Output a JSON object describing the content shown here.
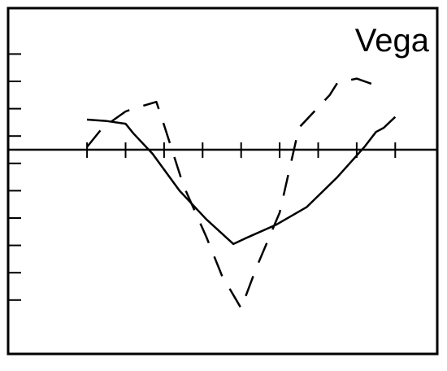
{
  "chart_data": {
    "type": "line",
    "title": "Vega",
    "xlabel": "",
    "ylabel": "",
    "grid": false,
    "legend": "none",
    "xlim": [
      0,
      11
    ],
    "ylim": [
      -7.5,
      4.5
    ],
    "x_ticks": [
      1.5,
      2.5,
      3.5,
      4.5,
      5.5,
      6.5,
      7.5,
      8.5,
      9.5
    ],
    "y_ticks": [
      -5.5,
      -4.5,
      -3.5,
      -2.5,
      -1.5,
      -0.5,
      0.5,
      1.5,
      2.5,
      3.5
    ],
    "series": [
      {
        "style": "solid",
        "color": "#000000",
        "x": [
          1.5,
          2.0,
          2.5,
          2.7,
          3.2,
          3.9,
          4.6,
          5.3,
          5.6,
          6.4,
          7.2,
          8.0,
          8.7,
          9.0,
          9.2,
          9.5
        ],
        "y": [
          1.1,
          1.05,
          0.95,
          0.6,
          -0.15,
          -1.5,
          -2.55,
          -3.45,
          -3.25,
          -2.75,
          -2.1,
          -1.0,
          0.1,
          0.65,
          0.8,
          1.2
        ]
      },
      {
        "style": "dashed",
        "color": "#000000",
        "x": [
          1.5,
          1.9,
          2.5,
          2.7,
          3.3,
          3.5,
          4.0,
          4.6,
          5.0,
          5.5,
          5.9,
          6.5,
          7.0,
          7.8,
          8.0,
          8.5,
          9.0
        ],
        "y": [
          0.1,
          0.8,
          1.4,
          1.5,
          1.75,
          0.9,
          -1.3,
          -3.2,
          -4.6,
          -5.8,
          -4.3,
          -2.3,
          0.8,
          2.0,
          2.45,
          2.6,
          2.35
        ]
      }
    ]
  }
}
